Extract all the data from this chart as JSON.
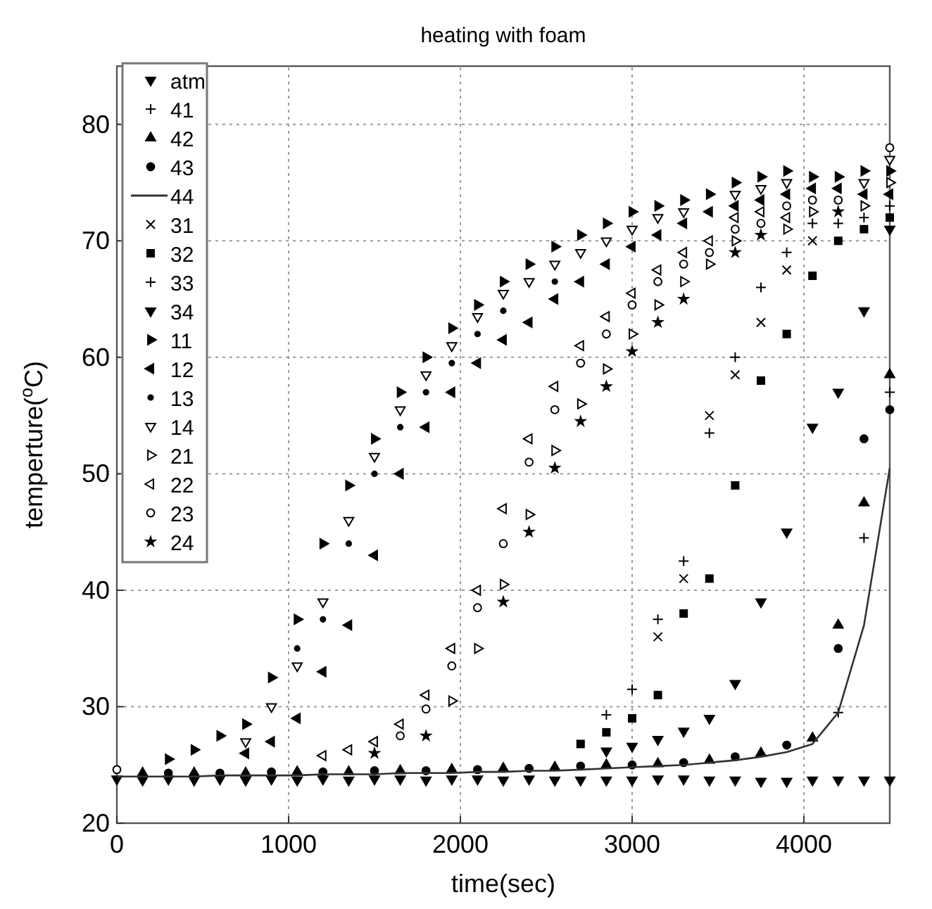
{
  "chart_data": {
    "type": "scatter",
    "title": "heating with foam",
    "xlabel": "time(sec)",
    "ylabel": "temperture($^{o}$C)",
    "x": [
      0,
      150,
      300,
      450,
      600,
      750,
      900,
      1050,
      1200,
      1350,
      1500,
      1650,
      1800,
      1950,
      2100,
      2250,
      2400,
      2550,
      2700,
      2850,
      3000,
      3150,
      3300,
      3450,
      3600,
      3750,
      3900,
      4050,
      4200,
      4350,
      4500
    ],
    "xlim": [
      0,
      4500
    ],
    "xticks": [
      0,
      1000,
      2000,
      3000,
      4000
    ],
    "ylim": [
      20,
      85
    ],
    "yticks": [
      20,
      30,
      40,
      50,
      60,
      70,
      80
    ],
    "grid": true,
    "legend": "top left",
    "series": [
      {
        "name": "atm",
        "color": "#000000",
        "marker": "triangle-down",
        "values": [
          23.8,
          23.7,
          23.8,
          23.7,
          23.8,
          23.7,
          23.8,
          23.7,
          23.8,
          23.7,
          23.8,
          23.8,
          23.7,
          23.8,
          23.8,
          23.7,
          23.8,
          23.7,
          23.7,
          23.7,
          23.7,
          23.8,
          23.8,
          23.7,
          23.7,
          23.6,
          23.6,
          23.7,
          23.7,
          23.7,
          23.7
        ]
      },
      {
        "name": "41",
        "color": "#000000",
        "marker": "cross",
        "values": [
          null,
          null,
          null,
          null,
          null,
          null,
          null,
          null,
          null,
          null,
          null,
          null,
          null,
          null,
          null,
          null,
          null,
          null,
          null,
          null,
          null,
          null,
          null,
          null,
          null,
          null,
          null,
          null,
          29.5,
          44.5,
          57
        ]
      },
      {
        "name": "42",
        "color": "#000000",
        "marker": "triangle",
        "values": [
          null,
          24.3,
          null,
          24.3,
          null,
          24.3,
          null,
          24.4,
          null,
          24.4,
          null,
          24.5,
          null,
          24.6,
          null,
          24.7,
          null,
          24.8,
          null,
          25.0,
          null,
          25.1,
          null,
          25.4,
          null,
          26.0,
          null,
          27.3,
          37,
          47.5,
          58.5
        ]
      },
      {
        "name": "43",
        "color": "#000000",
        "marker": "circle",
        "values": [
          null,
          null,
          24.3,
          null,
          24.3,
          null,
          24.4,
          null,
          24.4,
          null,
          24.5,
          null,
          24.5,
          null,
          24.6,
          null,
          24.7,
          null,
          24.9,
          null,
          25.0,
          null,
          25.2,
          null,
          25.7,
          null,
          26.7,
          null,
          35,
          53,
          55.5
        ]
      },
      {
        "name": "44",
        "type": "line",
        "color": "#333333",
        "marker": "none",
        "values": [
          24.0,
          24.0,
          24.0,
          24.0,
          24.1,
          24.1,
          24.1,
          24.1,
          24.2,
          24.2,
          24.2,
          24.3,
          24.3,
          24.3,
          24.4,
          24.4,
          24.5,
          24.5,
          24.6,
          24.7,
          24.8,
          24.9,
          25.0,
          25.2,
          25.4,
          25.7,
          26.1,
          26.8,
          29.5,
          37,
          50.5
        ]
      },
      {
        "name": "31",
        "color": "#000000",
        "marker": "x",
        "values": [
          null,
          null,
          null,
          null,
          null,
          null,
          null,
          null,
          null,
          null,
          null,
          null,
          null,
          null,
          null,
          null,
          null,
          null,
          null,
          null,
          null,
          36,
          41,
          55,
          58.5,
          63,
          67.5,
          70,
          null,
          null,
          null
        ]
      },
      {
        "name": "32",
        "color": "#000000",
        "marker": "square",
        "values": [
          null,
          null,
          null,
          null,
          null,
          null,
          null,
          null,
          null,
          null,
          null,
          null,
          null,
          null,
          null,
          null,
          null,
          null,
          26.8,
          27.8,
          29,
          31,
          38,
          41,
          49,
          58,
          62,
          67,
          70,
          71,
          72
        ]
      },
      {
        "name": "33",
        "color": "#000000",
        "marker": "cross",
        "values": [
          null,
          null,
          null,
          null,
          null,
          null,
          null,
          null,
          null,
          null,
          null,
          null,
          null,
          null,
          null,
          null,
          null,
          null,
          null,
          29.3,
          31.5,
          37.5,
          42.5,
          53.5,
          60,
          66,
          69,
          71.5,
          71.5,
          72,
          73
        ]
      },
      {
        "name": "34",
        "color": "#000000",
        "marker": "triangle-down",
        "values": [
          null,
          null,
          null,
          null,
          null,
          null,
          null,
          null,
          null,
          null,
          null,
          null,
          null,
          null,
          null,
          null,
          null,
          null,
          null,
          26.2,
          26.6,
          27.2,
          27.9,
          29,
          32,
          39,
          45,
          54,
          57,
          64,
          71
        ]
      },
      {
        "name": "11",
        "color": "#000000",
        "marker": "triangle-right",
        "values": [
          null,
          null,
          25.5,
          26.3,
          27.5,
          28.5,
          32.5,
          37.5,
          44,
          49,
          53,
          57,
          60,
          62.5,
          64.5,
          66.5,
          68,
          69.5,
          70.5,
          71.5,
          72.5,
          73,
          73.5,
          74,
          75,
          75.5,
          76,
          75.5,
          75.5,
          76,
          76
        ]
      },
      {
        "name": "12",
        "color": "#000000",
        "marker": "triangle-left",
        "values": [
          null,
          null,
          null,
          null,
          null,
          26,
          27,
          29,
          33,
          37,
          43,
          50,
          54,
          57,
          59.5,
          61.5,
          63,
          65,
          66.5,
          68,
          69.5,
          70.5,
          71.5,
          72.5,
          73,
          73.5,
          74,
          74.5,
          74.5,
          74,
          74
        ]
      },
      {
        "name": "13",
        "color": "#000000",
        "marker": "dot",
        "values": [
          null,
          null,
          null,
          null,
          null,
          null,
          null,
          35,
          37.5,
          44,
          50,
          54,
          57,
          59.5,
          62,
          64,
          null,
          66.5,
          null,
          null,
          null,
          null,
          null,
          null,
          null,
          null,
          null,
          null,
          null,
          null,
          null
        ]
      },
      {
        "name": "14",
        "color": "#000000",
        "marker": "triangle-down-open",
        "values": [
          null,
          null,
          null,
          null,
          null,
          27,
          30,
          33.5,
          39,
          46,
          51.5,
          55.5,
          58.5,
          61,
          63.5,
          65.5,
          66.5,
          68,
          69,
          70,
          71,
          72,
          72.5,
          null,
          74,
          74.5,
          75,
          null,
          null,
          75,
          77
        ]
      },
      {
        "name": "21",
        "color": "#000000",
        "marker": "triangle-right-open",
        "values": [
          null,
          null,
          null,
          null,
          null,
          null,
          null,
          null,
          null,
          null,
          null,
          null,
          null,
          30.5,
          35,
          40.5,
          46.5,
          52,
          56,
          59,
          62,
          64.5,
          66.5,
          68,
          70,
          null,
          71,
          72.5,
          null,
          73,
          75
        ]
      },
      {
        "name": "22",
        "color": "#000000",
        "marker": "triangle-left-open",
        "values": [
          null,
          null,
          null,
          null,
          null,
          null,
          null,
          null,
          25.8,
          26.3,
          27,
          28.5,
          31,
          35,
          40,
          47,
          53,
          57.5,
          61,
          63.5,
          65.5,
          67.5,
          69,
          70,
          72,
          72.5,
          72,
          null,
          null,
          null,
          null
        ]
      },
      {
        "name": "23",
        "color": "#000000",
        "marker": "circle-open",
        "values": [
          24.6,
          null,
          null,
          null,
          null,
          null,
          null,
          null,
          null,
          null,
          null,
          27.5,
          29.8,
          33.5,
          38.5,
          44,
          51,
          55.5,
          59.5,
          62,
          64.5,
          66.5,
          68,
          69,
          71,
          71.5,
          73,
          73.5,
          73.5,
          null,
          78
        ]
      },
      {
        "name": "24",
        "color": "#000000",
        "marker": "star",
        "values": [
          null,
          null,
          null,
          null,
          null,
          null,
          null,
          null,
          null,
          null,
          26,
          null,
          27.5,
          null,
          null,
          39,
          45,
          50.5,
          54.5,
          57.5,
          60.5,
          63,
          65,
          null,
          69,
          70.5,
          null,
          null,
          72.5,
          null,
          null
        ]
      }
    ]
  }
}
